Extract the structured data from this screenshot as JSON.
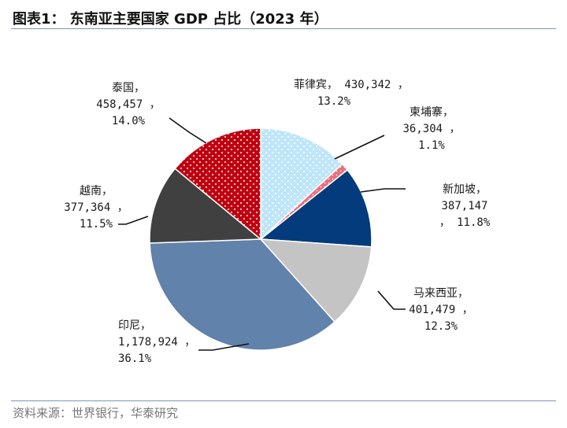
{
  "figure": {
    "title": "图表1：  东南亚主要国家 GDP 占比（2023 年）",
    "source": "资料来源：世界银行，华泰研究"
  },
  "chart_data": {
    "type": "pie",
    "title": "东南亚主要国家 GDP 占比（2023 年）",
    "labels": [
      "菲律宾",
      "柬埔寨",
      "新加坡",
      "马来西亚",
      "印尼",
      "越南",
      "泰国"
    ],
    "values": [
      430342,
      36304,
      387147,
      401479,
      1178924,
      377364,
      458457
    ],
    "value_texts": [
      "430,342",
      "36,304",
      "387,147",
      "401,479",
      "1,178,924",
      "377,364",
      "458,457"
    ],
    "percents": [
      "13.2%",
      "1.1%",
      "11.8%",
      "12.3%",
      "36.1%",
      "11.5%",
      "14.0%"
    ],
    "colors": [
      "#bfe6f8",
      "#e8707a",
      "#033b7c",
      "#c4c4c4",
      "#6082ab",
      "#404040",
      "#c00010"
    ],
    "patterns": [
      "white-dots",
      "white-dots",
      "none",
      "none",
      "none",
      "none",
      "white-dots"
    ],
    "start_angle_deg": 0,
    "direction": "clockwise"
  }
}
